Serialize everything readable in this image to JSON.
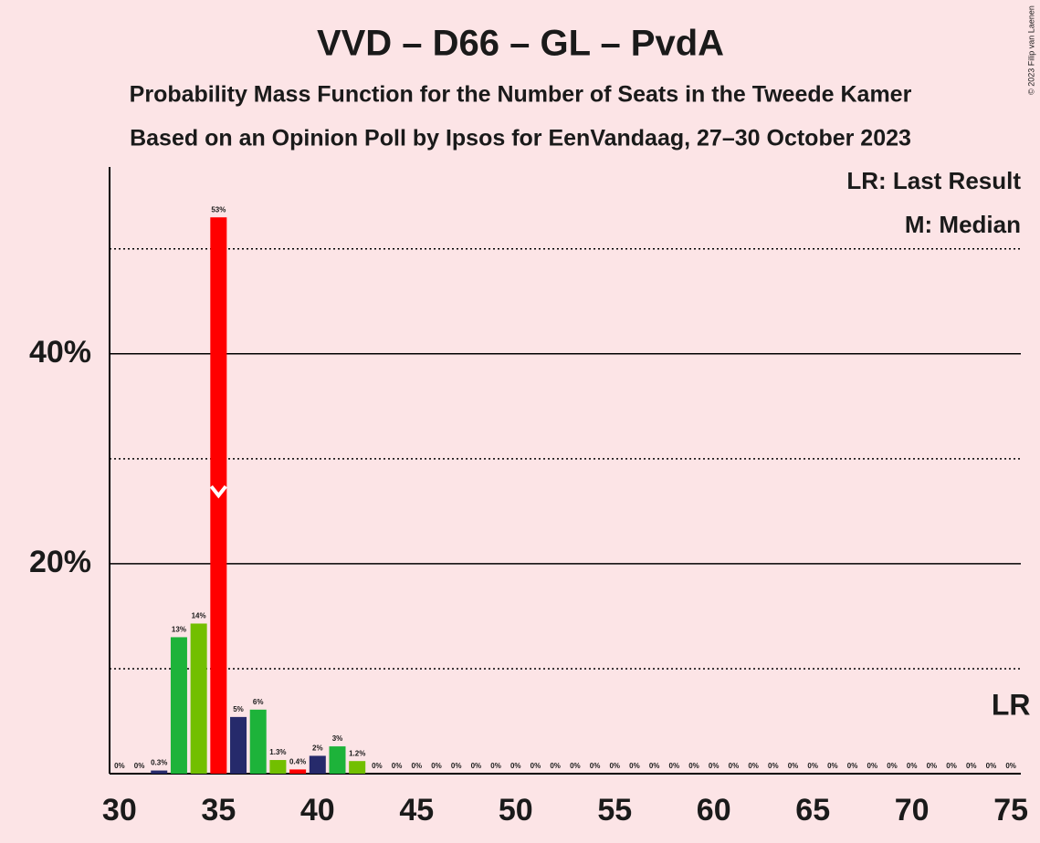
{
  "chart_data": {
    "type": "bar",
    "title": "VVD – D66 – GL – PvdA",
    "subtitle": [
      "Probability Mass Function for the Number of Seats in the Tweede Kamer",
      "Based on an Opinion Poll by Ipsos for EenVandaag, 27–30 October 2023"
    ],
    "copyright": "© 2023 Filip van Laenen",
    "legend": [
      "LR: Last Result",
      "M: Median"
    ],
    "last_result_label": "LR",
    "last_result": 75,
    "median": 35,
    "x": [
      30,
      31,
      32,
      33,
      34,
      35,
      36,
      37,
      38,
      39,
      40,
      41,
      42,
      43,
      44,
      45,
      46,
      47,
      48,
      49,
      50,
      51,
      52,
      53,
      54,
      55,
      56,
      57,
      58,
      59,
      60,
      61,
      62,
      63,
      64,
      65,
      66,
      67,
      68,
      69,
      70,
      71,
      72,
      73,
      74,
      75
    ],
    "values": [
      0,
      0,
      0.3,
      13,
      14.3,
      53,
      5.4,
      6.1,
      1.3,
      0.4,
      1.7,
      2.6,
      1.2,
      0,
      0,
      0,
      0,
      0,
      0,
      0,
      0,
      0,
      0,
      0,
      0,
      0,
      0,
      0,
      0,
      0,
      0,
      0,
      0,
      0,
      0,
      0,
      0,
      0,
      0,
      0,
      0,
      0,
      0,
      0,
      0,
      0
    ],
    "value_labels": [
      "0%",
      "0%",
      "0.3%",
      "13%",
      "14%",
      "53%",
      "5%",
      "6%",
      "1.3%",
      "0.4%",
      "2%",
      "3%",
      "1.2%",
      "0%",
      "0%",
      "0%",
      "0%",
      "0%",
      "0%",
      "0%",
      "0%",
      "0%",
      "0%",
      "0%",
      "0%",
      "0%",
      "0%",
      "0%",
      "0%",
      "0%",
      "0%",
      "0%",
      "0%",
      "0%",
      "0%",
      "0%",
      "0%",
      "0%",
      "0%",
      "0%",
      "0%",
      "0%",
      "0%",
      "0%",
      "0%",
      "0%"
    ],
    "colors": [
      "#72bf00",
      "#ff0000",
      "#262a6b",
      "#1db33a"
    ],
    "xlim": [
      29.5,
      75.5
    ],
    "xticks": [
      30,
      35,
      40,
      45,
      50,
      55,
      60,
      65,
      70,
      75
    ],
    "ylim": [
      0,
      57.8
    ],
    "yticks": [
      {
        "value": 20,
        "label": "20%"
      },
      {
        "value": 40,
        "label": "40%"
      }
    ],
    "minor_yticks": [
      10,
      30,
      50
    ],
    "grid": true
  }
}
